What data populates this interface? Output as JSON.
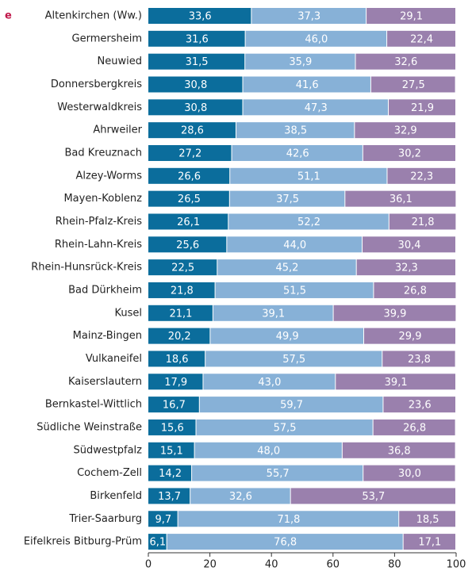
{
  "chart_data": {
    "type": "stacked_barh",
    "annotation": "e",
    "categories": [
      "Altenkirchen (Ww.)",
      "Germersheim",
      "Neuwied",
      "Donnersbergkreis",
      "Westerwaldkreis",
      "Ahrweiler",
      "Bad Kreuznach",
      "Alzey-Worms",
      "Mayen-Koblenz",
      "Rhein-Pfalz-Kreis",
      "Rhein-Lahn-Kreis",
      "Rhein-Hunsrück-Kreis",
      "Bad Dürkheim",
      "Kusel",
      "Mainz-Bingen",
      "Vulkaneifel",
      "Kaiserslautern",
      "Bernkastel-Wittlich",
      "Südliche Weinstraße",
      "Südwestpfalz",
      "Cochem-Zell",
      "Birkenfeld",
      "Trier-Saarburg",
      "Eifelkreis Bitburg-Prüm"
    ],
    "series": [
      {
        "color": "#0b6d9c",
        "values": [
          33.6,
          31.6,
          31.5,
          30.8,
          30.8,
          28.6,
          27.2,
          26.6,
          26.5,
          26.1,
          25.6,
          22.5,
          21.8,
          21.1,
          20.2,
          18.6,
          17.9,
          16.7,
          15.6,
          15.1,
          14.2,
          13.7,
          9.7,
          6.1
        ],
        "value_labels": [
          "33,6",
          "31,6",
          "31,5",
          "30,8",
          "30,8",
          "28,6",
          "27,2",
          "26,6",
          "26,5",
          "26,1",
          "25,6",
          "22,5",
          "21,8",
          "21,1",
          "20,2",
          "18,6",
          "17,9",
          "16,7",
          "15,6",
          "15,1",
          "14,2",
          "13,7",
          "9,7",
          "6,1"
        ]
      },
      {
        "color": "#87b1d7",
        "values": [
          37.3,
          46.0,
          35.9,
          41.6,
          47.3,
          38.5,
          42.6,
          51.1,
          37.5,
          52.2,
          44.0,
          45.2,
          51.5,
          39.1,
          49.9,
          57.5,
          43.0,
          59.7,
          57.5,
          48.0,
          55.7,
          32.6,
          71.8,
          76.8
        ],
        "value_labels": [
          "37,3",
          "46,0",
          "35,9",
          "41,6",
          "47,3",
          "38,5",
          "42,6",
          "51,1",
          "37,5",
          "52,2",
          "44,0",
          "45,2",
          "51,5",
          "39,1",
          "49,9",
          "57,5",
          "43,0",
          "59,7",
          "57,5",
          "48,0",
          "55,7",
          "32,6",
          "71,8",
          "76,8"
        ]
      },
      {
        "color": "#9a80ad",
        "values": [
          29.1,
          22.4,
          32.6,
          27.5,
          21.9,
          32.9,
          30.2,
          22.3,
          36.1,
          21.8,
          30.4,
          32.3,
          26.8,
          39.9,
          29.9,
          23.8,
          39.1,
          23.6,
          26.8,
          36.8,
          30.0,
          53.7,
          18.5,
          17.1
        ],
        "value_labels": [
          "29,1",
          "22,4",
          "32,6",
          "27,5",
          "21,9",
          "32,9",
          "30,2",
          "22,3",
          "36,1",
          "21,8",
          "30,4",
          "32,3",
          "26,8",
          "39,9",
          "29,9",
          "23,8",
          "39,1",
          "23,6",
          "26,8",
          "36,8",
          "30,0",
          "53,7",
          "18,5",
          "17,1"
        ]
      }
    ],
    "xlim": [
      0,
      100
    ],
    "xticks": [
      0,
      20,
      40,
      60,
      80,
      100
    ]
  }
}
